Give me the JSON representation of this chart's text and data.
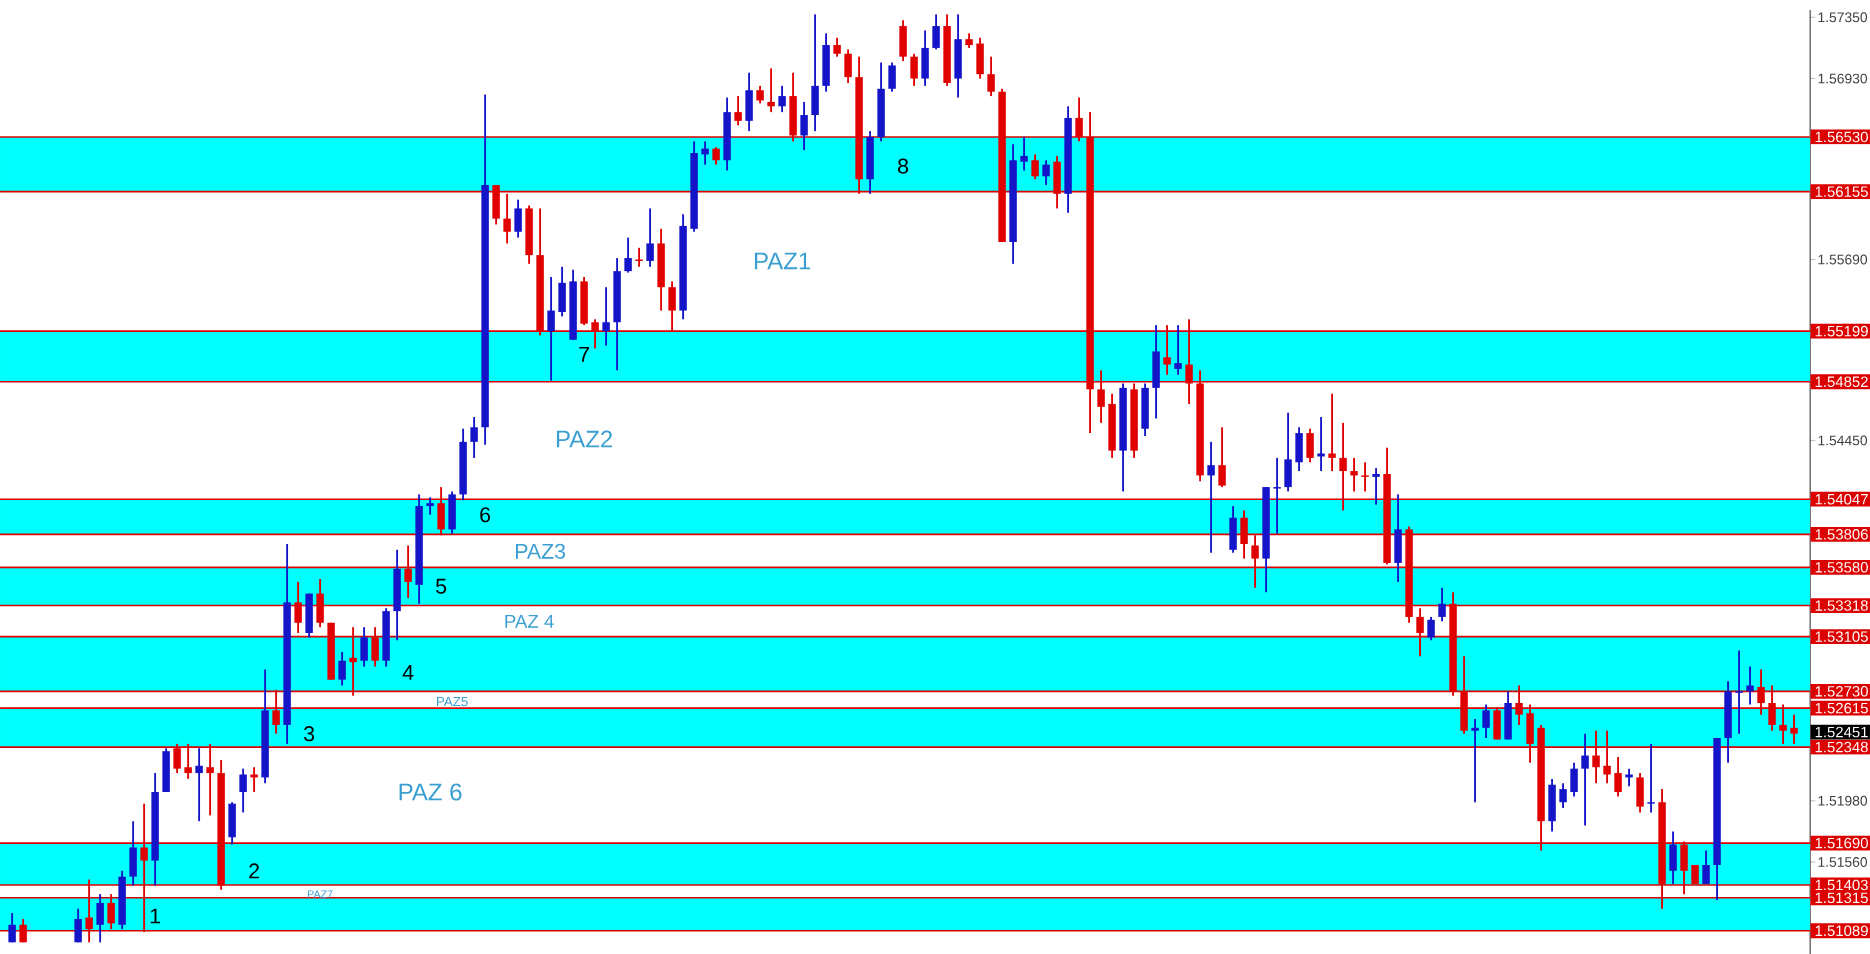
{
  "chart_data": {
    "type": "candlestick",
    "categories": [
      null,
      null,
      null,
      null,
      null,
      null,
      null,
      null,
      null,
      null,
      null,
      null,
      null,
      null,
      null,
      null,
      null,
      null,
      null,
      null,
      null,
      null,
      null,
      null,
      null,
      null,
      null,
      null,
      null,
      null,
      null,
      null,
      null,
      null,
      null,
      null,
      null,
      null,
      null,
      null,
      null,
      null,
      null,
      null,
      null,
      null,
      null,
      null,
      null,
      null,
      null,
      null,
      null,
      null,
      null,
      null,
      null,
      null,
      null,
      null,
      null,
      null,
      null,
      null,
      null,
      null,
      null,
      null,
      null,
      null,
      null,
      null,
      null,
      null,
      null,
      null,
      null,
      null,
      null,
      null,
      null,
      null,
      null,
      null,
      null,
      null,
      null,
      null,
      null,
      null,
      null,
      null,
      null,
      null,
      null,
      null,
      null,
      null,
      null,
      null,
      null,
      null,
      null,
      null,
      null,
      null,
      null,
      null,
      null,
      null,
      null,
      null,
      null,
      null,
      null,
      null,
      null,
      null,
      null,
      null,
      null,
      null,
      null,
      null,
      null,
      null,
      null,
      null,
      null,
      null,
      null,
      null,
      null,
      null,
      null,
      null,
      null,
      null,
      null,
      null,
      null,
      null,
      null,
      null,
      null,
      null,
      null,
      null,
      null,
      null,
      null,
      null,
      null,
      null,
      null,
      null,
      null,
      null,
      null,
      null,
      null,
      null,
      null
    ],
    "ohlc": [
      [
        1.5101,
        1.5121,
        1.5101,
        1.5113
      ],
      [
        1.5113,
        1.5117,
        1.5101,
        1.5101
      ],
      null,
      null,
      null,
      null,
      [
        1.5101,
        1.5124,
        1.5101,
        1.5117
      ],
      [
        1.5118,
        1.5144,
        1.5101,
        1.511
      ],
      [
        1.5113,
        1.5134,
        1.5101,
        1.5128
      ],
      [
        1.5128,
        1.5134,
        1.511,
        1.5114
      ],
      [
        1.5113,
        1.515,
        1.511,
        1.5146
      ],
      [
        1.5146,
        1.5184,
        1.514,
        1.5166
      ],
      [
        1.5166,
        1.5196,
        1.5108,
        1.5157
      ],
      [
        1.5157,
        1.5217,
        1.514,
        1.5204
      ],
      [
        1.5204,
        1.5234,
        1.5204,
        1.5232
      ],
      [
        1.5234,
        1.5237,
        1.5217,
        1.522
      ],
      [
        1.5221,
        1.5237,
        1.5213,
        1.5217
      ],
      [
        1.5217,
        1.5234,
        1.5184,
        1.5222
      ],
      [
        1.5221,
        1.5237,
        1.5188,
        1.5217
      ],
      [
        1.5217,
        1.5226,
        1.5137,
        1.514
      ],
      [
        1.5173,
        1.5197,
        1.5168,
        1.5196
      ],
      [
        1.5204,
        1.522,
        1.519,
        1.5216
      ],
      [
        1.5216,
        1.5221,
        1.5204,
        1.5214
      ],
      [
        1.5214,
        1.5288,
        1.521,
        1.526
      ],
      [
        1.526,
        1.5274,
        1.5244,
        1.525
      ],
      [
        1.525,
        1.5374,
        1.5237,
        1.5334
      ],
      [
        1.5334,
        1.5348,
        1.5313,
        1.532
      ],
      [
        1.5313,
        1.534,
        1.531,
        1.534
      ],
      [
        1.534,
        1.535,
        1.5317,
        1.532
      ],
      [
        1.532,
        1.532,
        1.5281,
        1.5281
      ],
      [
        1.5281,
        1.53,
        1.5277,
        1.5294
      ],
      [
        1.5296,
        1.5317,
        1.527,
        1.5293
      ],
      [
        1.5294,
        1.5317,
        1.529,
        1.531
      ],
      [
        1.531,
        1.5317,
        1.529,
        1.5294
      ],
      [
        1.5294,
        1.533,
        1.529,
        1.5328
      ],
      [
        1.5328,
        1.537,
        1.5308,
        1.5357
      ],
      [
        1.5357,
        1.5373,
        1.5337,
        1.5348
      ],
      [
        1.5346,
        1.5408,
        1.5333,
        1.54
      ],
      [
        1.54,
        1.5406,
        1.5394,
        1.5402
      ],
      [
        1.5402,
        1.5413,
        1.538,
        1.5384
      ],
      [
        1.5384,
        1.541,
        1.5381,
        1.5408
      ],
      [
        1.5408,
        1.5453,
        1.5404,
        1.5444
      ],
      [
        1.5444,
        1.5461,
        1.5433,
        1.5454
      ],
      [
        1.5454,
        1.5682,
        1.5442,
        1.562
      ],
      [
        1.562,
        1.562,
        1.5593,
        1.5597
      ],
      [
        1.5597,
        1.5614,
        1.558,
        1.5588
      ],
      [
        1.5588,
        1.561,
        1.5584,
        1.5604
      ],
      [
        1.5604,
        1.5606,
        1.5566,
        1.5572
      ],
      [
        1.5572,
        1.5604,
        1.5517,
        1.552
      ],
      [
        1.552,
        1.5557,
        1.5486,
        1.5534
      ],
      [
        1.5533,
        1.5564,
        1.553,
        1.5553
      ],
      [
        1.5514,
        1.5562,
        1.5514,
        1.5554
      ],
      [
        1.5554,
        1.5557,
        1.5524,
        1.5525
      ],
      [
        1.5526,
        1.5528,
        1.5508,
        1.552
      ],
      [
        1.552,
        1.555,
        1.551,
        1.5526
      ],
      [
        1.5526,
        1.557,
        1.5493,
        1.5561
      ],
      [
        1.5561,
        1.5584,
        1.556,
        1.557
      ],
      [
        1.5569,
        1.5577,
        1.5564,
        1.5568
      ],
      [
        1.5568,
        1.5604,
        1.5564,
        1.558
      ],
      [
        1.558,
        1.559,
        1.5534,
        1.555
      ],
      [
        1.555,
        1.5554,
        1.552,
        1.5534
      ],
      [
        1.5534,
        1.56,
        1.5528,
        1.5592
      ],
      [
        1.559,
        1.565,
        1.5588,
        1.5642
      ],
      [
        1.5641,
        1.565,
        1.5634,
        1.5645
      ],
      [
        1.5645,
        1.5646,
        1.5634,
        1.5637
      ],
      [
        1.5637,
        1.568,
        1.563,
        1.567
      ],
      [
        1.567,
        1.5681,
        1.5661,
        1.5664
      ],
      [
        1.5664,
        1.5697,
        1.5657,
        1.5685
      ],
      [
        1.5685,
        1.5688,
        1.5676,
        1.5678
      ],
      [
        1.5677,
        1.57,
        1.567,
        1.5674
      ],
      [
        1.5674,
        1.5688,
        1.567,
        1.5681
      ],
      [
        1.5681,
        1.5697,
        1.565,
        1.5654
      ],
      [
        1.5654,
        1.5677,
        1.5644,
        1.5668
      ],
      [
        1.5668,
        1.5737,
        1.5657,
        1.5688
      ],
      [
        1.5688,
        1.5724,
        1.5684,
        1.5716
      ],
      [
        1.5716,
        1.5721,
        1.5708,
        1.571
      ],
      [
        1.571,
        1.5713,
        1.569,
        1.5694
      ],
      [
        1.5694,
        1.5708,
        1.5614,
        1.5624
      ],
      [
        1.5624,
        1.5657,
        1.5614,
        1.5653
      ],
      [
        1.5653,
        1.5704,
        1.565,
        1.5686
      ],
      [
        1.5686,
        1.5704,
        1.5684,
        1.5702
      ],
      [
        1.5729,
        1.5733,
        1.5705,
        1.5708
      ],
      [
        1.5708,
        1.571,
        1.5688,
        1.5693
      ],
      [
        1.5693,
        1.5726,
        1.5688,
        1.5714
      ],
      [
        1.5714,
        1.5737,
        1.5713,
        1.5729
      ],
      [
        1.5729,
        1.5737,
        1.5688,
        1.569
      ],
      [
        1.5693,
        1.5737,
        1.568,
        1.572
      ],
      [
        1.572,
        1.5724,
        1.5714,
        1.5716
      ],
      [
        1.5717,
        1.5721,
        1.5693,
        1.5696
      ],
      [
        1.5696,
        1.5708,
        1.5681,
        1.5684
      ],
      [
        1.5684,
        1.5686,
        1.5581,
        1.5581
      ],
      [
        1.5581,
        1.5648,
        1.5566,
        1.5637
      ],
      [
        1.5636,
        1.5653,
        1.563,
        1.564
      ],
      [
        1.5637,
        1.5641,
        1.5624,
        1.5626
      ],
      [
        1.5626,
        1.5637,
        1.562,
        1.5634
      ],
      [
        1.5636,
        1.564,
        1.5604,
        1.5614
      ],
      [
        1.5614,
        1.5674,
        1.5601,
        1.5666
      ],
      [
        1.5666,
        1.568,
        1.565,
        1.5653
      ],
      [
        1.5653,
        1.567,
        1.545,
        1.548
      ],
      [
        1.548,
        1.5493,
        1.5457,
        1.5468
      ],
      [
        1.547,
        1.5477,
        1.5433,
        1.5438
      ],
      [
        1.5438,
        1.5484,
        1.541,
        1.5481
      ],
      [
        1.548,
        1.5484,
        1.5433,
        1.5438
      ],
      [
        1.5453,
        1.5484,
        1.5448,
        1.5481
      ],
      [
        1.5481,
        1.5524,
        1.546,
        1.5506
      ],
      [
        1.5502,
        1.5524,
        1.549,
        1.5497
      ],
      [
        1.5494,
        1.5524,
        1.549,
        1.5498
      ],
      [
        1.5497,
        1.5528,
        1.547,
        1.5484
      ],
      [
        1.5484,
        1.5493,
        1.5417,
        1.5421
      ],
      [
        1.5421,
        1.5444,
        1.5368,
        1.5428
      ],
      [
        1.5428,
        1.5454,
        1.5413,
        1.5414
      ],
      [
        1.537,
        1.54,
        1.5368,
        1.5392
      ],
      [
        1.5392,
        1.5397,
        1.5364,
        1.5374
      ],
      [
        1.5373,
        1.538,
        1.5344,
        1.5364
      ],
      [
        1.5364,
        1.5413,
        1.5341,
        1.5413
      ],
      [
        1.5412,
        1.5433,
        1.5381,
        1.5413
      ],
      [
        1.5413,
        1.5464,
        1.541,
        1.5432
      ],
      [
        1.543,
        1.5454,
        1.5424,
        1.545
      ],
      [
        1.545,
        1.5453,
        1.543,
        1.5433
      ],
      [
        1.5434,
        1.5461,
        1.5424,
        1.5436
      ],
      [
        1.5436,
        1.5477,
        1.5424,
        1.5433
      ],
      [
        1.5433,
        1.5457,
        1.5397,
        1.5424
      ],
      [
        1.5424,
        1.5433,
        1.541,
        1.5421
      ],
      [
        1.5421,
        1.543,
        1.541,
        1.542
      ],
      [
        1.542,
        1.5426,
        1.5401,
        1.5422
      ],
      [
        1.5422,
        1.544,
        1.536,
        1.5361
      ],
      [
        1.5361,
        1.5408,
        1.5348,
        1.5384
      ],
      [
        1.5384,
        1.5386,
        1.532,
        1.5324
      ],
      [
        1.5324,
        1.533,
        1.5297,
        1.5313
      ],
      [
        1.531,
        1.5324,
        1.5308,
        1.5322
      ],
      [
        1.5324,
        1.5344,
        1.5321,
        1.5333
      ],
      [
        1.5333,
        1.5341,
        1.527,
        1.5273
      ],
      [
        1.5273,
        1.5297,
        1.5244,
        1.5246
      ],
      [
        1.5246,
        1.5254,
        1.5197,
        1.5248
      ],
      [
        1.5248,
        1.5264,
        1.5241,
        1.526
      ],
      [
        1.526,
        1.5262,
        1.524,
        1.524
      ],
      [
        1.524,
        1.5273,
        1.524,
        1.5265
      ],
      [
        1.5265,
        1.5277,
        1.525,
        1.5257
      ],
      [
        1.5258,
        1.5264,
        1.5224,
        1.5237
      ],
      [
        1.5248,
        1.525,
        1.5164,
        1.5184
      ],
      [
        1.5184,
        1.5213,
        1.5177,
        1.5209
      ],
      [
        1.5197,
        1.521,
        1.5193,
        1.5206
      ],
      [
        1.5204,
        1.5224,
        1.5201,
        1.522
      ],
      [
        1.522,
        1.5244,
        1.5181,
        1.5229
      ],
      [
        1.5229,
        1.5246,
        1.521,
        1.5221
      ],
      [
        1.5222,
        1.5246,
        1.521,
        1.5216
      ],
      [
        1.5217,
        1.5228,
        1.5201,
        1.5204
      ],
      [
        1.5214,
        1.522,
        1.5208,
        1.5216
      ],
      [
        1.5214,
        1.5217,
        1.519,
        1.5194
      ],
      [
        1.5196,
        1.5237,
        1.519,
        1.5197
      ],
      [
        1.5197,
        1.5206,
        1.5124,
        1.5141
      ],
      [
        1.515,
        1.5177,
        1.5141,
        1.5168
      ],
      [
        1.5168,
        1.517,
        1.5134,
        1.515
      ],
      [
        1.5154,
        1.5154,
        1.5141,
        1.5141
      ],
      [
        1.5141,
        1.5164,
        1.5141,
        1.5154
      ],
      [
        1.5154,
        1.5241,
        1.513,
        1.5241
      ],
      [
        1.5241,
        1.528,
        1.5224,
        1.5273
      ],
      [
        1.5272,
        1.5301,
        1.5244,
        1.5273
      ],
      [
        1.5273,
        1.529,
        1.5264,
        1.5277
      ],
      [
        1.5276,
        1.5288,
        1.5257,
        1.5265
      ],
      [
        1.5265,
        1.5277,
        1.5246,
        1.525
      ],
      [
        1.525,
        1.5264,
        1.5237,
        1.5246
      ],
      [
        1.5248,
        1.5257,
        1.5237,
        1.5244
      ]
    ],
    "ylim": [
      1.5093,
      1.574
    ],
    "yticks": [
      {
        "value": 1.5735,
        "label": "1.57350"
      },
      {
        "value": 1.5693,
        "label": "1.56930"
      },
      {
        "value": 1.5569,
        "label": "1.55690"
      },
      {
        "value": 1.5445,
        "label": "1.54450"
      },
      {
        "value": 1.5198,
        "label": "1.51980"
      },
      {
        "value": 1.5156,
        "label": "1.51560"
      }
    ],
    "ref_lines": [
      {
        "axis": "y",
        "value": 1.5653,
        "label": "1.56530",
        "color": "#dd0000"
      },
      {
        "axis": "y",
        "value": 1.56155,
        "label": "1.56155",
        "color": "#dd0000"
      },
      {
        "axis": "y",
        "value": 1.55199,
        "label": "1.55199",
        "color": "#dd0000"
      },
      {
        "axis": "y",
        "value": 1.54852,
        "label": "1.54852",
        "color": "#dd0000"
      },
      {
        "axis": "y",
        "value": 1.54047,
        "label": "1.54047",
        "color": "#dd0000"
      },
      {
        "axis": "y",
        "value": 1.53806,
        "label": "1.53806",
        "color": "#dd0000"
      },
      {
        "axis": "y",
        "value": 1.5358,
        "label": "1.53580",
        "color": "#dd0000"
      },
      {
        "axis": "y",
        "value": 1.53318,
        "label": "1.53318",
        "color": "#dd0000"
      },
      {
        "axis": "y",
        "value": 1.53105,
        "label": "1.53105",
        "color": "#dd0000"
      },
      {
        "axis": "y",
        "value": 1.5273,
        "label": "1.52730",
        "color": "#dd0000"
      },
      {
        "axis": "y",
        "value": 1.52615,
        "label": "1.52615",
        "color": "#dd0000"
      },
      {
        "axis": "y",
        "value": 1.52348,
        "label": "1.52348",
        "color": "#dd0000"
      },
      {
        "axis": "y",
        "value": 1.5169,
        "label": "1.51690",
        "color": "#dd0000"
      },
      {
        "axis": "y",
        "value": 1.51403,
        "label": "1.51403",
        "color": "#dd0000"
      },
      {
        "axis": "y",
        "value": 1.51315,
        "label": "1.51315",
        "color": "#dd0000"
      },
      {
        "axis": "y",
        "value": 1.51089,
        "label": "1.51089",
        "color": "#dd0000"
      }
    ],
    "bands": [
      {
        "axis": "y",
        "from": 1.56155,
        "to": 1.5653,
        "color": "#00ffff"
      },
      {
        "axis": "y",
        "from": 1.54852,
        "to": 1.55199,
        "color": "#00ffff"
      },
      {
        "axis": "y",
        "from": 1.53806,
        "to": 1.54047,
        "color": "#00ffff"
      },
      {
        "axis": "y",
        "from": 1.53318,
        "to": 1.5358,
        "color": "#00ffff"
      },
      {
        "axis": "y",
        "from": 1.5273,
        "to": 1.53105,
        "color": "#00ffff"
      },
      {
        "axis": "y",
        "from": 1.52348,
        "to": 1.52615,
        "color": "#00ffff"
      },
      {
        "axis": "y",
        "from": 1.51403,
        "to": 1.5169,
        "color": "#00ffff"
      },
      {
        "axis": "y",
        "from": 1.51089,
        "to": 1.51315,
        "color": "#00ffff"
      }
    ],
    "annotations": [
      "PAZ1",
      "PAZ2",
      "PAZ3",
      "PAZ 4",
      "PAZ5",
      "PAZ 6",
      "PAZ7",
      "1",
      "2",
      "3",
      "4",
      "5",
      "6",
      "7",
      "8",
      "1.52451"
    ]
  }
}
